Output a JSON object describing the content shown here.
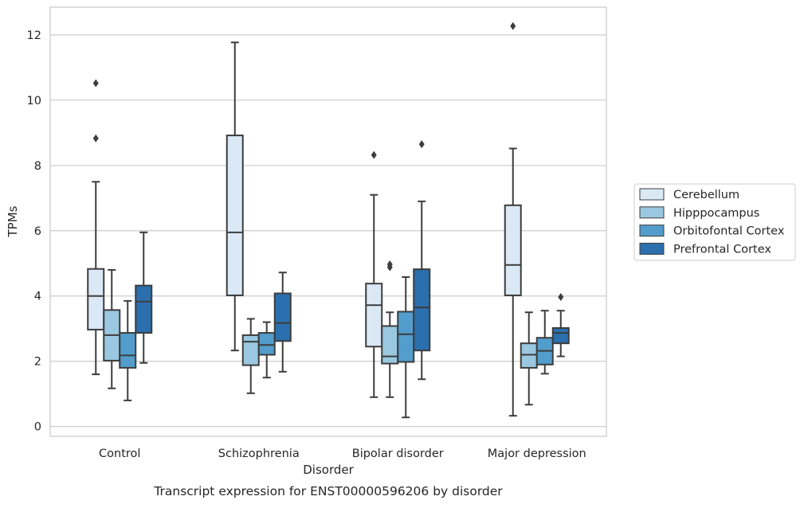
{
  "caption": "Transcript expression for ENST00000596206 by disorder",
  "chart_data": {
    "type": "box",
    "title": "",
    "xlabel": "Disorder",
    "ylabel": "TPMs",
    "ylim": [
      -0.3,
      12.85
    ],
    "yticks": [
      0,
      2,
      4,
      6,
      8,
      10,
      12
    ],
    "grid": "horizontal",
    "legend_position": "right",
    "categories": [
      "Control",
      "Schizophrenia",
      "Bipolar disorder",
      "Major depression"
    ],
    "series": [
      {
        "name": "Cerebellum",
        "color": "#dbe9f6",
        "boxes": [
          {
            "whislo": 1.6,
            "q1": 2.97,
            "med": 4.0,
            "q3": 4.83,
            "whishi": 7.5,
            "fliers": [
              8.83,
              10.52
            ]
          },
          {
            "whislo": 2.33,
            "q1": 4.02,
            "med": 5.95,
            "q3": 8.92,
            "whishi": 11.77,
            "fliers": []
          },
          {
            "whislo": 0.9,
            "q1": 2.45,
            "med": 3.72,
            "q3": 4.38,
            "whishi": 7.1,
            "fliers": [
              8.32
            ]
          },
          {
            "whislo": 0.33,
            "q1": 4.02,
            "med": 4.95,
            "q3": 6.78,
            "whishi": 8.52,
            "fliers": [
              12.27
            ]
          }
        ]
      },
      {
        "name": "Hipppocampus",
        "color": "#9ac8e0",
        "boxes": [
          {
            "whislo": 1.17,
            "q1": 2.02,
            "med": 2.8,
            "q3": 3.57,
            "whishi": 4.8,
            "fliers": []
          },
          {
            "whislo": 1.02,
            "q1": 1.88,
            "med": 2.6,
            "q3": 2.8,
            "whishi": 3.3,
            "fliers": []
          },
          {
            "whislo": 0.9,
            "q1": 1.93,
            "med": 2.15,
            "q3": 3.08,
            "whishi": 3.5,
            "fliers": [
              4.88,
              4.97
            ]
          },
          {
            "whislo": 0.67,
            "q1": 1.8,
            "med": 2.2,
            "q3": 2.55,
            "whishi": 3.5,
            "fliers": []
          }
        ]
      },
      {
        "name": "Orbitofontal Cortex",
        "color": "#529dcc",
        "boxes": [
          {
            "whislo": 0.8,
            "q1": 1.8,
            "med": 2.18,
            "q3": 2.87,
            "whishi": 3.85,
            "fliers": []
          },
          {
            "whislo": 1.5,
            "q1": 2.2,
            "med": 2.5,
            "q3": 2.87,
            "whishi": 3.2,
            "fliers": []
          },
          {
            "whislo": 0.28,
            "q1": 1.98,
            "med": 2.83,
            "q3": 3.52,
            "whishi": 4.58,
            "fliers": []
          },
          {
            "whislo": 1.62,
            "q1": 1.9,
            "med": 2.32,
            "q3": 2.72,
            "whishi": 3.55,
            "fliers": []
          }
        ]
      },
      {
        "name": "Prefrontal Cortex",
        "color": "#2b6fae",
        "boxes": [
          {
            "whislo": 1.95,
            "q1": 2.87,
            "med": 3.83,
            "q3": 4.32,
            "whishi": 5.95,
            "fliers": []
          },
          {
            "whislo": 1.68,
            "q1": 2.62,
            "med": 3.17,
            "q3": 4.08,
            "whishi": 4.72,
            "fliers": []
          },
          {
            "whislo": 1.45,
            "q1": 2.33,
            "med": 3.65,
            "q3": 4.82,
            "whishi": 6.9,
            "fliers": [
              8.65
            ]
          },
          {
            "whislo": 2.15,
            "q1": 2.55,
            "med": 2.87,
            "q3": 3.02,
            "whishi": 3.55,
            "fliers": [
              3.97
            ]
          }
        ]
      }
    ]
  }
}
